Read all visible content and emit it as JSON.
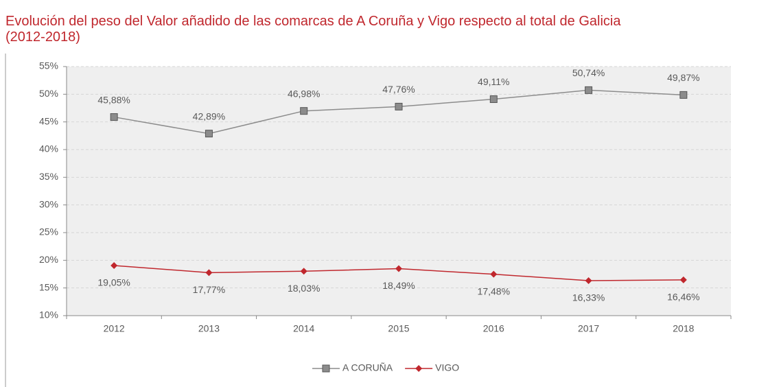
{
  "chart_data": {
    "type": "line",
    "title": [
      "Evolución del peso del Valor añadido de las comarcas de A Coruña y Vigo respecto al total de Galicia",
      "(2012-2018)"
    ],
    "categories": [
      "2012",
      "2013",
      "2014",
      "2015",
      "2016",
      "2017",
      "2018"
    ],
    "series": [
      {
        "name": "A CORUÑA",
        "color": "#8c8c8c",
        "marker": "square",
        "values": [
          45.88,
          42.89,
          46.98,
          47.76,
          49.11,
          50.74,
          49.87
        ],
        "value_labels": [
          "45,88%",
          "42,89%",
          "46,98%",
          "47,76%",
          "49,11%",
          "50,74%",
          "49,87%"
        ]
      },
      {
        "name": "VIGO",
        "color": "#c0272d",
        "marker": "diamond",
        "values": [
          19.05,
          17.77,
          18.03,
          18.49,
          17.48,
          16.33,
          16.46
        ],
        "value_labels": [
          "19,05%",
          "17,77%",
          "18,03%",
          "18,49%",
          "17,48%",
          "16,33%",
          "16,46%"
        ]
      }
    ],
    "ylim": [
      10,
      55
    ],
    "yticks": [
      {
        "value": 10,
        "label": "10%"
      },
      {
        "value": 15,
        "label": "15%"
      },
      {
        "value": 20,
        "label": "20%"
      },
      {
        "value": 25,
        "label": "25%"
      },
      {
        "value": 30,
        "label": "30%"
      },
      {
        "value": 35,
        "label": "35%"
      },
      {
        "value": 40,
        "label": "40%"
      },
      {
        "value": 45,
        "label": "45%"
      },
      {
        "value": 50,
        "label": "50%"
      },
      {
        "value": 55,
        "label": "55%"
      }
    ],
    "grid": true,
    "legend": "bottom"
  }
}
